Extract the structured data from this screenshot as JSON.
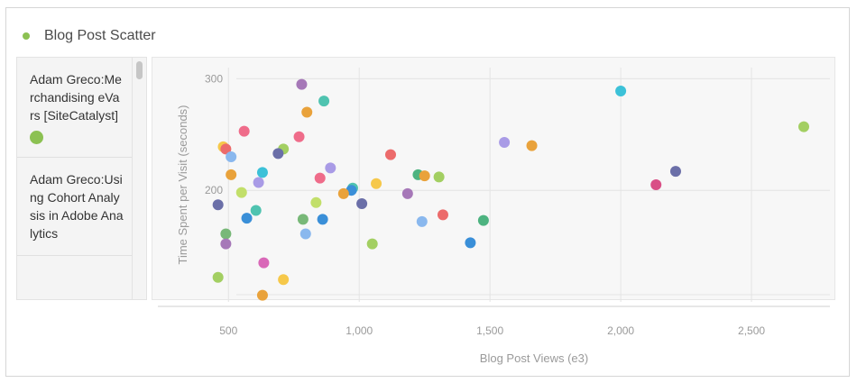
{
  "header": {
    "title": "Blog Post Scatter",
    "legend_color": "#8cc152"
  },
  "list": {
    "items": [
      {
        "label": "Adam Greco:Merchandising eVars [SiteCatalyst]",
        "color": "#8cc152"
      },
      {
        "label": "Adam Greco:Using Cohort Analysis in Adobe Analytics",
        "color": ""
      }
    ]
  },
  "chart_data": {
    "type": "scatter",
    "title": "",
    "xlabel": "Blog Post Views (e3)",
    "ylabel": "Time Spent per Visit (seconds)",
    "xlim": [
      230,
      2800
    ],
    "ylim": [
      100,
      310
    ],
    "x_ticks": [
      500,
      1000,
      1500,
      2000,
      2500
    ],
    "x_tick_labels": [
      "500",
      "1,000",
      "1,500",
      "2,000",
      "2,500"
    ],
    "y_ticks": [
      200,
      300
    ],
    "y_tick_labels": [
      "200",
      "300"
    ],
    "grid": true,
    "points": [
      {
        "x": 780,
        "y": 295,
        "color": "#a678b8"
      },
      {
        "x": 865,
        "y": 280,
        "color": "#4fc3b0"
      },
      {
        "x": 800,
        "y": 270,
        "color": "#e9a23b"
      },
      {
        "x": 2000,
        "y": 289,
        "color": "#3cc1d8"
      },
      {
        "x": 2700,
        "y": 257,
        "color": "#a3cf62"
      },
      {
        "x": 560,
        "y": 253,
        "color": "#ef6c8a"
      },
      {
        "x": 770,
        "y": 248,
        "color": "#ef6c8a"
      },
      {
        "x": 480,
        "y": 239,
        "color": "#f6c84a"
      },
      {
        "x": 490,
        "y": 237,
        "color": "#ec6b6b"
      },
      {
        "x": 710,
        "y": 237,
        "color": "#a3cf62"
      },
      {
        "x": 690,
        "y": 233,
        "color": "#6b6fa8"
      },
      {
        "x": 1120,
        "y": 232,
        "color": "#ec6b6b"
      },
      {
        "x": 1555,
        "y": 243,
        "color": "#a99be6"
      },
      {
        "x": 1660,
        "y": 240,
        "color": "#e9a23b"
      },
      {
        "x": 510,
        "y": 230,
        "color": "#8ab8ee"
      },
      {
        "x": 510,
        "y": 214,
        "color": "#e9a23b"
      },
      {
        "x": 630,
        "y": 216,
        "color": "#3cc1d8"
      },
      {
        "x": 890,
        "y": 220,
        "color": "#a99be6"
      },
      {
        "x": 850,
        "y": 211,
        "color": "#ef6c8a"
      },
      {
        "x": 1225,
        "y": 214,
        "color": "#4db380"
      },
      {
        "x": 1250,
        "y": 213,
        "color": "#e9a23b"
      },
      {
        "x": 1305,
        "y": 212,
        "color": "#a3cf62"
      },
      {
        "x": 615,
        "y": 207,
        "color": "#a99be6"
      },
      {
        "x": 1065,
        "y": 206,
        "color": "#f6c84a"
      },
      {
        "x": 2135,
        "y": 205,
        "color": "#d94f86"
      },
      {
        "x": 2210,
        "y": 217,
        "color": "#6b6fa8"
      },
      {
        "x": 975,
        "y": 202,
        "color": "#4fc3b0"
      },
      {
        "x": 970,
        "y": 200,
        "color": "#3a8fd8"
      },
      {
        "x": 940,
        "y": 197,
        "color": "#e9a23b"
      },
      {
        "x": 1185,
        "y": 197,
        "color": "#a678b8"
      },
      {
        "x": 550,
        "y": 198,
        "color": "#c2df6a"
      },
      {
        "x": 835,
        "y": 189,
        "color": "#c2df6a"
      },
      {
        "x": 1010,
        "y": 188,
        "color": "#6b6fa8"
      },
      {
        "x": 460,
        "y": 187,
        "color": "#6b6fa8"
      },
      {
        "x": 605,
        "y": 182,
        "color": "#4fc3b0"
      },
      {
        "x": 570,
        "y": 175,
        "color": "#3a8fd8"
      },
      {
        "x": 785,
        "y": 174,
        "color": "#78b878"
      },
      {
        "x": 860,
        "y": 174,
        "color": "#3a8fd8"
      },
      {
        "x": 1320,
        "y": 178,
        "color": "#ec6b6b"
      },
      {
        "x": 1240,
        "y": 172,
        "color": "#8ab8ee"
      },
      {
        "x": 1475,
        "y": 173,
        "color": "#4db380"
      },
      {
        "x": 490,
        "y": 161,
        "color": "#78b878"
      },
      {
        "x": 795,
        "y": 161,
        "color": "#8ab8ee"
      },
      {
        "x": 490,
        "y": 152,
        "color": "#a678b8"
      },
      {
        "x": 1050,
        "y": 152,
        "color": "#a3cf62"
      },
      {
        "x": 1425,
        "y": 153,
        "color": "#3a8fd8"
      },
      {
        "x": 635,
        "y": 135,
        "color": "#d968b8"
      },
      {
        "x": 460,
        "y": 122,
        "color": "#a3cf62"
      },
      {
        "x": 710,
        "y": 120,
        "color": "#f6c84a"
      },
      {
        "x": 630,
        "y": 106,
        "color": "#e9a23b"
      }
    ]
  }
}
